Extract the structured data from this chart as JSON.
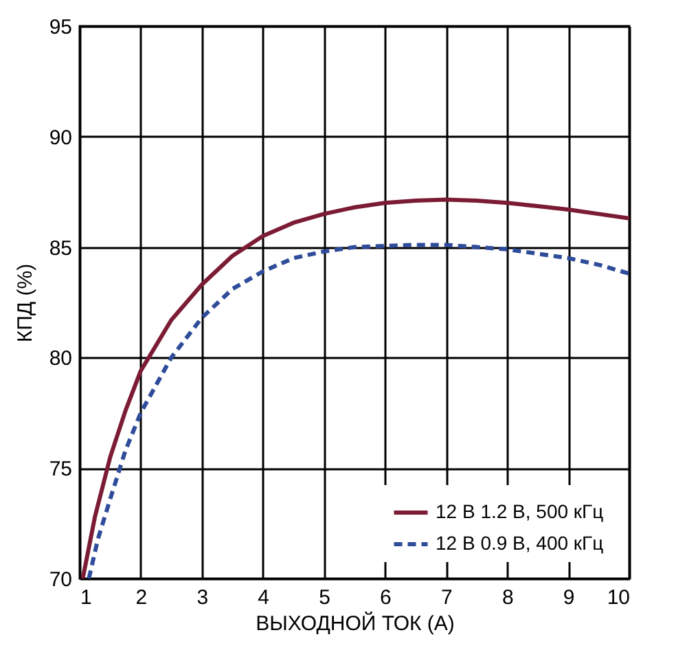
{
  "chart_data": {
    "type": "line",
    "xlabel": "ВЫХОДНОЙ ТОК (А)",
    "ylabel": "КПД (%)",
    "xlim": [
      1,
      10
    ],
    "ylim": [
      70,
      95
    ],
    "xticks": [
      1,
      2,
      3,
      4,
      5,
      6,
      7,
      8,
      9,
      10
    ],
    "yticks": [
      70,
      75,
      80,
      85,
      90,
      95
    ],
    "grid": true,
    "legend": "bottom right",
    "series": [
      {
        "name": "12 В 1.2 В, 500 кГц",
        "color": "#7b1c34",
        "line_style": "solid",
        "x": [
          1.05,
          1.25,
          1.5,
          1.75,
          2,
          2.5,
          3,
          3.5,
          4,
          4.5,
          5,
          5.5,
          6,
          6.5,
          7,
          7.5,
          8,
          8.5,
          9,
          9.5,
          10
        ],
        "values": [
          70,
          72.8,
          75.5,
          77.6,
          79.4,
          81.7,
          83.3,
          84.6,
          85.5,
          86.1,
          86.5,
          86.8,
          87.0,
          87.1,
          87.15,
          87.1,
          87.0,
          86.85,
          86.7,
          86.5,
          86.3
        ]
      },
      {
        "name": "12 В 0.9 В, 400 кГц",
        "color": "#2f4c9a",
        "line_style": "dashed",
        "x": [
          1.15,
          1.3,
          1.5,
          1.75,
          2,
          2.5,
          3,
          3.5,
          4,
          4.5,
          5,
          5.5,
          6,
          6.5,
          7,
          7.5,
          8,
          8.5,
          9,
          9.5,
          10
        ],
        "values": [
          70,
          71.8,
          73.6,
          75.8,
          77.5,
          80.0,
          81.8,
          83.1,
          83.9,
          84.5,
          84.8,
          85.0,
          85.05,
          85.1,
          85.1,
          85.0,
          84.9,
          84.7,
          84.5,
          84.2,
          83.8
        ]
      }
    ]
  }
}
